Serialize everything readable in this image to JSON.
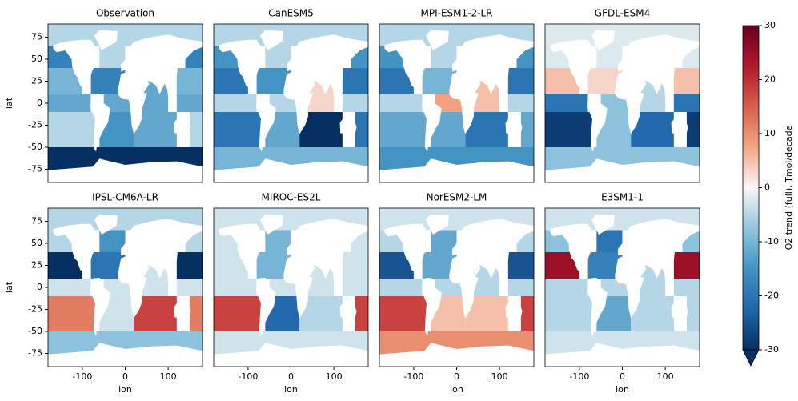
{
  "chart_data": [
    {
      "type": "map",
      "title": "Observation",
      "ylabel": "lat",
      "yticks": [
        75,
        50,
        25,
        0,
        -25,
        -50,
        -75
      ],
      "xlim": [
        -180,
        180
      ],
      "ylim": [
        -90,
        90
      ],
      "values": [
        -5,
        -18,
        -5,
        -10,
        -18,
        -12,
        -12,
        -12,
        -5,
        -15,
        -12,
        -30
      ]
    },
    {
      "type": "map",
      "title": "CanESM5",
      "xlim": [
        -180,
        180
      ],
      "ylim": [
        -90,
        90
      ],
      "values": [
        -5,
        -15,
        -5,
        -20,
        -15,
        -5,
        -5,
        3,
        -20,
        -12,
        -30,
        -10
      ]
    },
    {
      "type": "map",
      "title": "MPI-ESM1-2-LR",
      "xlim": [
        -180,
        180
      ],
      "ylim": [
        -90,
        90
      ],
      "values": [
        -5,
        -15,
        -5,
        -20,
        -10,
        -5,
        8,
        5,
        -12,
        -12,
        -20,
        -15
      ]
    },
    {
      "type": "map",
      "title": "GFDL-ESM4",
      "xlim": [
        -180,
        180
      ],
      "ylim": [
        -90,
        90
      ],
      "values": [
        -2,
        -2,
        -2,
        5,
        3,
        -20,
        -8,
        -5,
        -28,
        -8,
        -22,
        -8
      ]
    },
    {
      "type": "map",
      "title": "IPSL-CM6A-LR",
      "ylabel": "lat",
      "yticks": [
        75,
        50,
        25,
        0,
        -25,
        -50,
        -75
      ],
      "xlabel": "lon",
      "xticks": [
        -100,
        0,
        100
      ],
      "xlim": [
        -180,
        180
      ],
      "ylim": [
        -90,
        90
      ],
      "values": [
        -5,
        -5,
        -15,
        -30,
        -20,
        -3,
        -3,
        -3,
        12,
        -3,
        18,
        -8
      ]
    },
    {
      "type": "map",
      "title": "MIROC-ES2L",
      "xlabel": "lon",
      "xticks": [
        -100,
        0,
        100
      ],
      "xlim": [
        -180,
        180
      ],
      "ylim": [
        -90,
        90
      ],
      "values": [
        -3,
        -3,
        -10,
        -3,
        -10,
        -3,
        -3,
        -3,
        18,
        -22,
        -5,
        -3
      ]
    },
    {
      "type": "map",
      "title": "NorESM2-LM",
      "xlabel": "lon",
      "xticks": [
        -100,
        0,
        100
      ],
      "xlim": [
        -180,
        180
      ],
      "ylim": [
        -90,
        90
      ],
      "values": [
        -3,
        -5,
        -12,
        -25,
        -12,
        -5,
        -5,
        -5,
        18,
        5,
        5,
        10
      ]
    },
    {
      "type": "map",
      "title": "E3SM1-1",
      "xlabel": "lon",
      "xticks": [
        -100,
        0,
        100
      ],
      "xlim": [
        -180,
        180
      ],
      "ylim": [
        -90,
        90
      ],
      "values": [
        -3,
        -8,
        -20,
        25,
        -18,
        -5,
        -5,
        -5,
        -5,
        -12,
        -5,
        -3
      ]
    }
  ],
  "colorbar": {
    "label": "O2 trend (full), Tmol/decade",
    "lim": [
      -30,
      30
    ],
    "ticks": [
      30,
      20,
      10,
      0,
      -10,
      -20,
      -30
    ],
    "colormap": [
      "#053061",
      "#2166ac",
      "#4393c3",
      "#92c5de",
      "#f7f7f7",
      "#f4a582",
      "#d6604d",
      "#b2182b",
      "#67001f"
    ]
  }
}
